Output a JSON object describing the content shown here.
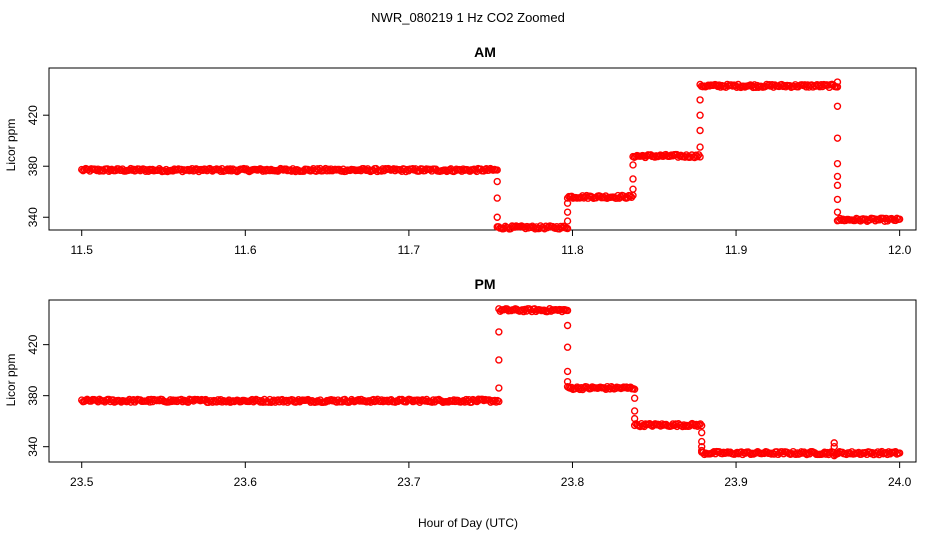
{
  "chart_data": {
    "title": "NWR_080219  1 Hz CO2 Zoomed",
    "xlabel": "Hour of Day (UTC)",
    "marker_color": "#ff0000",
    "type": "scatter",
    "panels": [
      {
        "key": "am",
        "title": "AM",
        "ylabel": "Licor ppm",
        "xlim": [
          11.48,
          12.01
        ],
        "ylim": [
          330,
          457
        ],
        "xticks": [
          "11.5",
          "11.6",
          "11.7",
          "11.8",
          "11.9",
          "12.0"
        ],
        "yticks": [
          "340",
          "380",
          "420"
        ],
        "segments": [
          {
            "x0": 11.5,
            "x1": 11.754,
            "y": 377
          },
          {
            "x0": 11.754,
            "x1": 11.797,
            "y": 332
          },
          {
            "x0": 11.797,
            "x1": 11.837,
            "y": 356
          },
          {
            "x0": 11.837,
            "x1": 11.878,
            "y": 388
          },
          {
            "x0": 11.878,
            "x1": 11.962,
            "y": 443
          },
          {
            "x0": 11.962,
            "x1": 12.0,
            "y": 338
          }
        ],
        "transitions": [
          {
            "x": 11.754,
            "ys": [
              368,
              355,
              340
            ]
          },
          {
            "x": 11.797,
            "ys": [
              337,
              344,
              351
            ]
          },
          {
            "x": 11.837,
            "ys": [
              362,
              370,
              381
            ]
          },
          {
            "x": 11.878,
            "ys": [
              395,
              408,
              420,
              432
            ]
          },
          {
            "x": 11.962,
            "ys": [
              446,
              427,
              402,
              382,
              372,
              365,
              354,
              344
            ]
          }
        ]
      },
      {
        "key": "pm",
        "title": "PM",
        "ylabel": "Licor ppm",
        "xlim": [
          23.48,
          24.01
        ],
        "ylim": [
          328,
          455
        ],
        "xticks": [
          "23.5",
          "23.6",
          "23.7",
          "23.8",
          "23.9",
          "24.0"
        ],
        "yticks": [
          "340",
          "380",
          "420"
        ],
        "segments": [
          {
            "x0": 23.5,
            "x1": 23.755,
            "y": 376
          },
          {
            "x0": 23.755,
            "x1": 23.797,
            "y": 447
          },
          {
            "x0": 23.797,
            "x1": 23.838,
            "y": 386
          },
          {
            "x0": 23.838,
            "x1": 23.879,
            "y": 357
          },
          {
            "x0": 23.879,
            "x1": 24.0,
            "y": 335
          }
        ],
        "transitions": [
          {
            "x": 23.755,
            "ys": [
              386,
              408,
              430
            ]
          },
          {
            "x": 23.797,
            "ys": [
              435,
              418,
              399,
              391
            ]
          },
          {
            "x": 23.838,
            "ys": [
              378,
              368,
              362
            ]
          },
          {
            "x": 23.879,
            "ys": [
              351,
              344,
              340,
              337
            ]
          },
          {
            "x": 23.96,
            "ys": [
              343,
              340,
              333
            ]
          }
        ]
      }
    ]
  }
}
